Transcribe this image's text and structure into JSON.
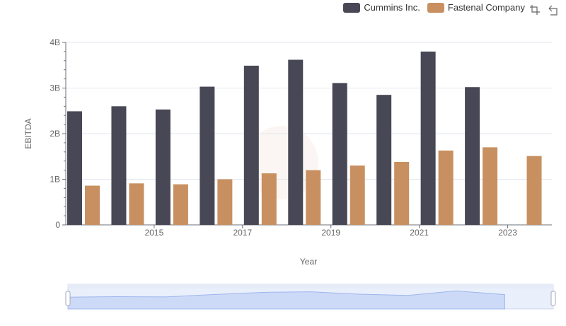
{
  "legend": [
    {
      "name": "Cummins Inc.",
      "color": "#474755"
    },
    {
      "name": "Fastenal Company",
      "color": "#c89060"
    }
  ],
  "toolbox": {
    "icons": [
      "zoom-icon",
      "restore-icon"
    ]
  },
  "chart_data": {
    "type": "bar",
    "xlabel": "Year",
    "ylabel": "EBITDA",
    "years": [
      2014,
      2015,
      2016,
      2017,
      2018,
      2019,
      2020,
      2021,
      2022,
      2023,
      2024
    ],
    "xtick_labels": [
      "2015",
      "2017",
      "2019",
      "2021",
      "2023"
    ],
    "ytick_labels": [
      "0",
      "1B",
      "2B",
      "3B",
      "4B"
    ],
    "ylim": [
      0,
      4000000000
    ],
    "grid": true,
    "legend_position": "top-right",
    "series": [
      {
        "name": "Cummins Inc.",
        "color": "#474755",
        "values": [
          2490000000,
          2600000000,
          2530000000,
          3030000000,
          3490000000,
          3620000000,
          3110000000,
          2850000000,
          3800000000,
          3020000000,
          null
        ]
      },
      {
        "name": "Fastenal Company",
        "color": "#c89060",
        "values": [
          860000000,
          910000000,
          890000000,
          1000000000,
          1130000000,
          1200000000,
          1300000000,
          1380000000,
          1630000000,
          1700000000,
          1510000000
        ]
      }
    ]
  }
}
